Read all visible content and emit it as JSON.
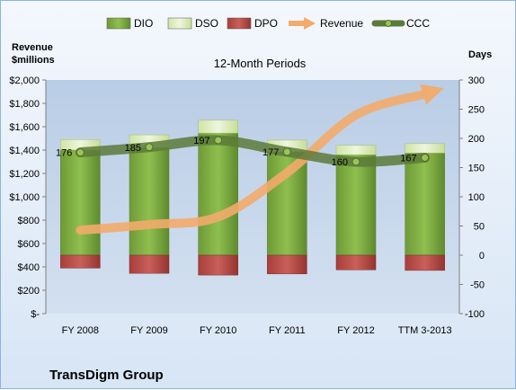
{
  "chart_data": {
    "type": "bar",
    "title": "12-Month Periods",
    "company": "TransDigm Group",
    "left_axis_label_line1": "Revenue",
    "left_axis_label_line2": "$millions",
    "right_axis_label": "Days",
    "categories": [
      "FY 2008",
      "FY 2009",
      "FY 2010",
      "FY 2011",
      "FY 2012",
      "TTM 3-2013"
    ],
    "left_ylim": [
      0,
      2000
    ],
    "left_ticks": [
      "$-",
      "$200",
      "$400",
      "$600",
      "$800",
      "$1,000",
      "$1,200",
      "$1,400",
      "$1,600",
      "$1,800",
      "$2,000"
    ],
    "right_ylim": [
      -100,
      300
    ],
    "right_ticks": [
      "-100",
      "-50",
      "0",
      "50",
      "100",
      "150",
      "200",
      "250",
      "300"
    ],
    "series": [
      {
        "name": "DIO",
        "axis": "right",
        "type": "stacked-bar",
        "color": "#76a33c",
        "values": [
          180,
          184,
          209,
          177,
          172,
          175
        ]
      },
      {
        "name": "DSO",
        "axis": "right",
        "type": "stacked-bar",
        "color": "#d7e8b4",
        "values": [
          18,
          22,
          22,
          20,
          16,
          16
        ]
      },
      {
        "name": "DPO",
        "axis": "right",
        "type": "stacked-bar",
        "color": "#b34540",
        "values": [
          -22,
          -31,
          -34,
          -32,
          -25,
          -26
        ]
      },
      {
        "name": "Revenue",
        "axis": "left",
        "type": "line-arrow",
        "color": "#f2ab6b",
        "values": [
          714,
          762,
          828,
          1206,
          1700,
          1880
        ]
      },
      {
        "name": "CCC",
        "axis": "right",
        "type": "line",
        "color": "#5c7a3a",
        "values": [
          176,
          185,
          197,
          177,
          160,
          167
        ]
      }
    ],
    "ccc_labels": [
      "176",
      "185",
      "197",
      "177",
      "160",
      "167"
    ],
    "legend_position": "top",
    "grid": false
  }
}
